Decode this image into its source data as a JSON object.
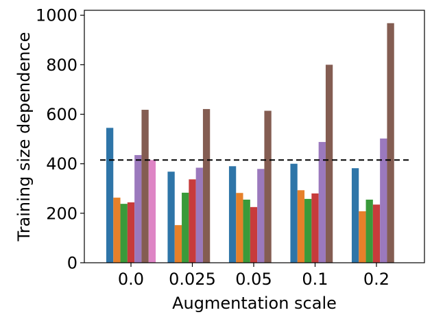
{
  "chart_data": {
    "type": "bar",
    "title": "",
    "xlabel": "Augmentation scale",
    "ylabel": "Training size dependence",
    "categories": [
      "0.0",
      "0.025",
      "0.05",
      "0.1",
      "0.2"
    ],
    "ylim": [
      0,
      1020
    ],
    "yticks": [
      0,
      200,
      400,
      600,
      800,
      1000
    ],
    "grid": false,
    "legend": "none",
    "reference_line": {
      "value": 415,
      "style": "dashed",
      "color": "#000000"
    },
    "series": [
      {
        "color": "#2e75a8",
        "values": [
          545,
          368,
          390,
          400,
          382
        ]
      },
      {
        "color": "#e6802a",
        "values": [
          263,
          152,
          282,
          293,
          208
        ]
      },
      {
        "color": "#3a9a3a",
        "values": [
          238,
          283,
          255,
          258,
          255
        ]
      },
      {
        "color": "#c73b3b",
        "values": [
          244,
          337,
          225,
          280,
          235
        ]
      },
      {
        "color": "#9b79bd",
        "values": [
          435,
          384,
          379,
          488,
          502
        ]
      },
      {
        "color": "#845d52",
        "values": [
          618,
          621,
          614,
          800,
          968
        ]
      },
      {
        "color": "#de85c5",
        "values": [
          415,
          null,
          null,
          null,
          null
        ]
      }
    ]
  }
}
